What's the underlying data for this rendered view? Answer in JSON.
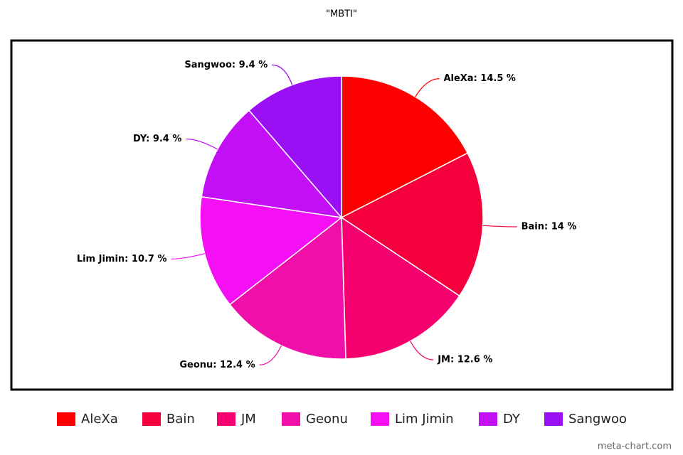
{
  "chart_data": {
    "type": "pie",
    "title": "\"MBTI\"",
    "categories": [
      "AleXa",
      "Bain",
      "JM",
      "Geonu",
      "Lim Jimin",
      "DY",
      "Sangwoo"
    ],
    "values": [
      14.5,
      14,
      12.6,
      12.4,
      10.7,
      9.4,
      9.4
    ],
    "value_labels": [
      "AleXa: 14.5 %",
      "Bain: 14 %",
      "JM: 12.6 %",
      "Geonu: 12.4 %",
      "Lim Jimin: 10.7 %",
      "DY: 9.4 %",
      "Sangwoo: 9.4 %"
    ],
    "colors": [
      "#ff0000",
      "#f5003c",
      "#f5006e",
      "#f00fa8",
      "#f50ff5",
      "#c30ff5",
      "#9b0ff5"
    ],
    "legend": "bottom",
    "watermark": "meta-chart.com"
  }
}
